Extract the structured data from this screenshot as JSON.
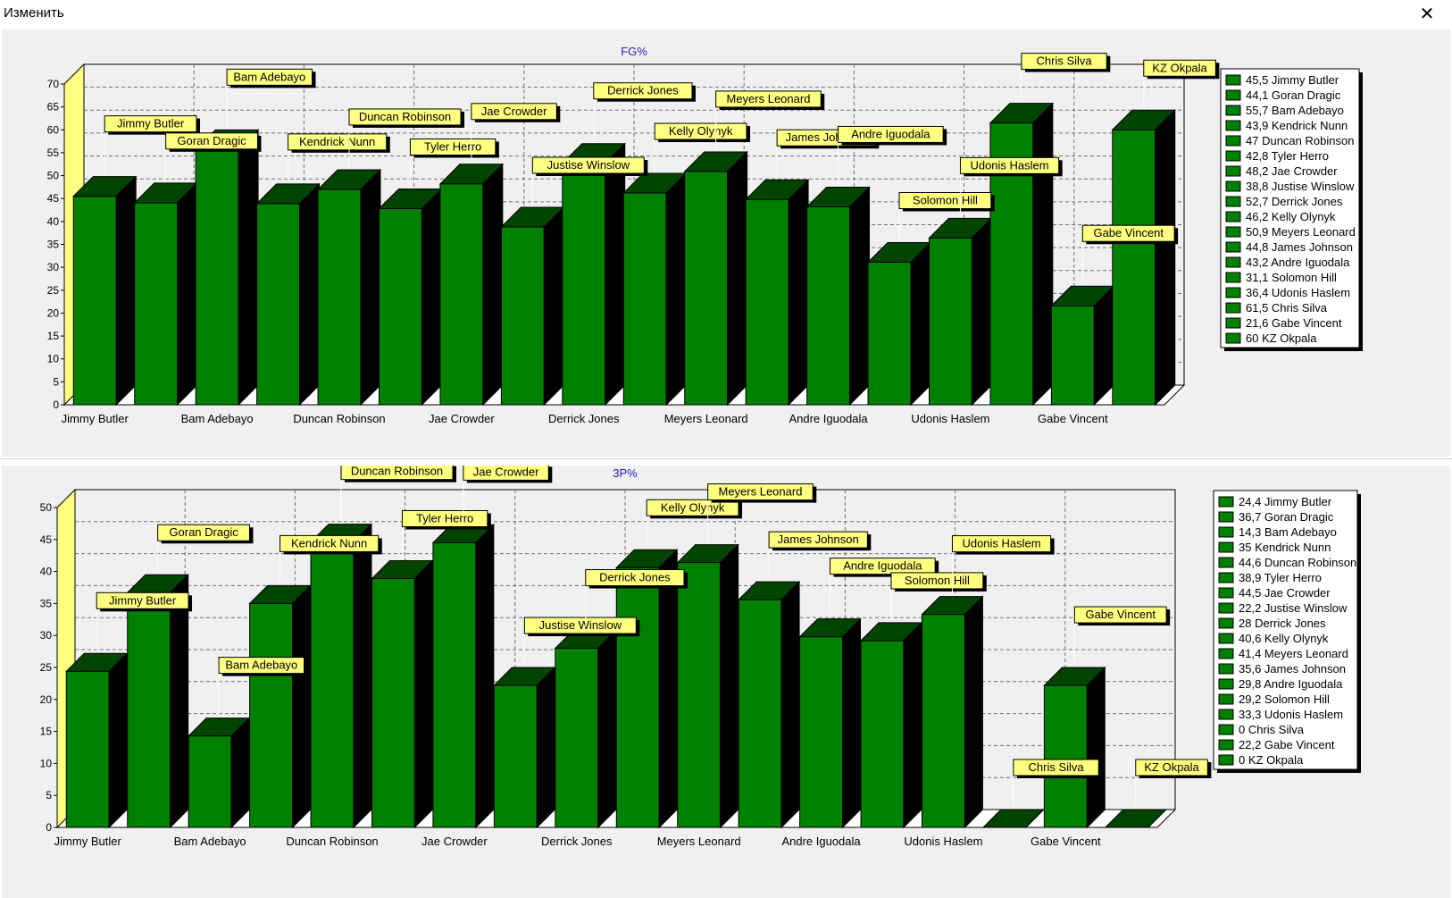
{
  "window": {
    "title": "Изменить",
    "close_glyph": "✕"
  },
  "colors": {
    "bar_front": "#008000",
    "bar_top": "#004400",
    "bar_side": "#000000",
    "wall": "#ffff80",
    "label_bg": "#ffff80",
    "title": "#2020c0"
  },
  "chart_data": [
    {
      "type": "bar",
      "title": "FG%",
      "ylim": [
        0,
        70
      ],
      "yticks": [
        0,
        5,
        10,
        15,
        20,
        25,
        30,
        35,
        40,
        45,
        50,
        55,
        60,
        65,
        70
      ],
      "grid": true,
      "legend_position": "right",
      "xtick_labels": [
        "Jimmy Butler",
        "Bam Adebayo",
        "Duncan Robinson",
        "Jae Crowder",
        "Derrick Jones",
        "Meyers Leonard",
        "Andre Iguodala",
        "Udonis Haslem",
        "Gabe Vincent"
      ],
      "categories": [
        "Jimmy Butler",
        "Goran Dragic",
        "Bam Adebayo",
        "Kendrick Nunn",
        "Duncan Robinson",
        "Tyler Herro",
        "Jae Crowder",
        "Justise Winslow",
        "Derrick Jones",
        "Kelly Olynyk",
        "Meyers Leonard",
        "James Johnson",
        "Andre Iguodala",
        "Solomon Hill",
        "Udonis Haslem",
        "Chris Silva",
        "Gabe Vincent",
        "KZ Okpala"
      ],
      "values": [
        45.5,
        44.1,
        55.7,
        43.9,
        47,
        42.8,
        48.2,
        38.8,
        52.7,
        46.2,
        50.9,
        44.8,
        43.2,
        31.1,
        36.4,
        61.5,
        21.6,
        60
      ],
      "legend": [
        "45,5 Jimmy Butler",
        "44,1 Goran Dragic",
        "55,7 Bam Adebayo",
        "43,9 Kendrick Nunn",
        "47 Duncan Robinson",
        "42,8 Tyler Herro",
        "48,2 Jae Crowder",
        "38,8 Justise Winslow",
        "52,7 Derrick Jones",
        "46,2 Kelly Olynyk",
        "50,9 Meyers Leonard",
        "44,8 James Johnson",
        "43,2 Andre Iguodala",
        "31,1 Solomon Hill",
        "36,4 Udonis Haslem",
        "61,5 Chris Silva",
        "21,6 Gabe Vincent",
        "60 KZ Okpala"
      ]
    },
    {
      "type": "bar",
      "title": "3P%",
      "ylim": [
        0,
        50
      ],
      "yticks": [
        0,
        5,
        10,
        15,
        20,
        25,
        30,
        35,
        40,
        45,
        50
      ],
      "grid": true,
      "legend_position": "right",
      "xtick_labels": [
        "Jimmy Butler",
        "Bam Adebayo",
        "Duncan Robinson",
        "Jae Crowder",
        "Derrick Jones",
        "Meyers Leonard",
        "Andre Iguodala",
        "Udonis Haslem",
        "Gabe Vincent"
      ],
      "categories": [
        "Jimmy Butler",
        "Goran Dragic",
        "Bam Adebayo",
        "Kendrick Nunn",
        "Duncan Robinson",
        "Tyler Herro",
        "Jae Crowder",
        "Justise Winslow",
        "Derrick Jones",
        "Kelly Olynyk",
        "Meyers Leonard",
        "James Johnson",
        "Andre Iguodala",
        "Solomon Hill",
        "Udonis Haslem",
        "Chris Silva",
        "Gabe Vincent",
        "KZ Okpala"
      ],
      "values": [
        24.4,
        36.7,
        14.3,
        35,
        44.6,
        38.9,
        44.5,
        22.2,
        28,
        40.6,
        41.4,
        35.6,
        29.8,
        29.2,
        33.3,
        0,
        22.2,
        0
      ],
      "legend": [
        "24,4 Jimmy Butler",
        "36,7 Goran Dragic",
        "14,3 Bam Adebayo",
        "35 Kendrick Nunn",
        "44,6 Duncan Robinson",
        "38,9 Tyler Herro",
        "44,5 Jae Crowder",
        "22,2 Justise Winslow",
        "28 Derrick Jones",
        "40,6 Kelly Olynyk",
        "41,4 Meyers Leonard",
        "35,6 James Johnson",
        "29,8 Andre Iguodala",
        "29,2 Solomon Hill",
        "33,3 Udonis Haslem",
        "0 Chris Silva",
        "22,2 Gabe Vincent",
        "0 KZ Okpala"
      ]
    }
  ]
}
